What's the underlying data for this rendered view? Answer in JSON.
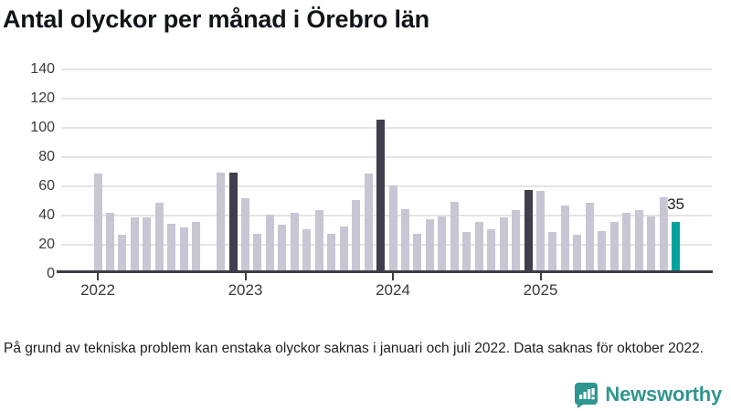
{
  "title": "Antal olyckor per månad i Örebro län",
  "footnote": "På grund av tekniska problem kan enstaka olyckor saknas i januari och juli 2022. Data saknas för oktober 2022.",
  "branding": {
    "name": "Newsworthy",
    "icon": "speech-bubble-bar-chart-icon"
  },
  "colors": {
    "bar_default": "#c7c6d2",
    "bar_december": "#3f3e4d",
    "bar_latest": "#00a49c",
    "gridline": "#e4e4e4",
    "axis": "#3d3d45",
    "brand_teal": "#2f958f"
  },
  "chart_data": {
    "type": "bar",
    "title": "Antal olyckor per månad i Örebro län",
    "xlabel": "",
    "ylabel": "",
    "y_ticks": [
      0,
      20,
      40,
      60,
      80,
      100,
      120,
      140
    ],
    "ylim": [
      0,
      145
    ],
    "grid": true,
    "start_month": "2022-01",
    "months_per_bar": 1,
    "values": [
      68,
      41,
      26,
      38,
      38,
      48,
      34,
      31,
      35,
      null,
      69,
      69,
      51,
      27,
      40,
      33,
      41,
      30,
      43,
      27,
      32,
      50,
      68,
      105,
      60,
      44,
      27,
      37,
      39,
      49,
      28,
      35,
      30,
      38,
      43,
      57,
      56,
      28,
      46,
      26,
      48,
      29,
      35,
      41,
      43,
      39,
      52,
      35
    ],
    "missing_month": "2022-10",
    "dark_bar_indices": [
      11,
      23,
      35
    ],
    "highlight_bar_index": 47,
    "annotation": {
      "bar_index": 47,
      "text": "35"
    },
    "x_year_ticks": [
      {
        "label": "2022",
        "bar_index": 0
      },
      {
        "label": "2023",
        "bar_index": 12
      },
      {
        "label": "2024",
        "bar_index": 24
      },
      {
        "label": "2025",
        "bar_index": 36
      }
    ],
    "legend": null
  }
}
